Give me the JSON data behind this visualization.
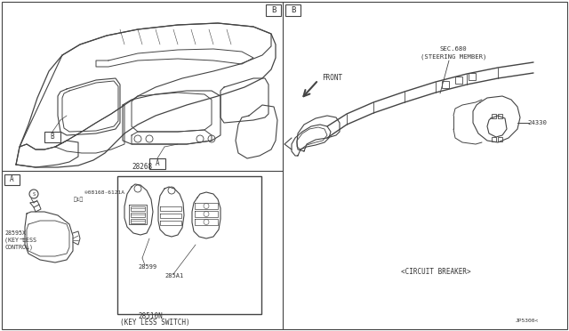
{
  "bg_color": "#ffffff",
  "lc": "#444444",
  "tc": "#333333",
  "fig_w": 6.4,
  "fig_h": 3.72,
  "dpi": 100,
  "labels": {
    "B_top": "B",
    "B_right": "B",
    "A_top_left": "A",
    "A_bottom_left": "A",
    "part_28268": "28268",
    "part_28595x": "28595X",
    "keyless_control": "(KEY LESS\nCONTROL)",
    "part_08168a": "®08168-6121A",
    "part_08168b": "（1）",
    "part_28599": "28599",
    "part_285a1": "285A1",
    "part_28510n": "28510N",
    "keyless_switch": "(KEY LESS SWITCH)",
    "sec680": "SEC.680",
    "steering_member": "(STEERING MEMBER)",
    "part_24330": "24330",
    "circuit_breaker": "<CIRCUIT BREAKER>",
    "front": "FRONT",
    "jp5300": "JP5300<"
  }
}
